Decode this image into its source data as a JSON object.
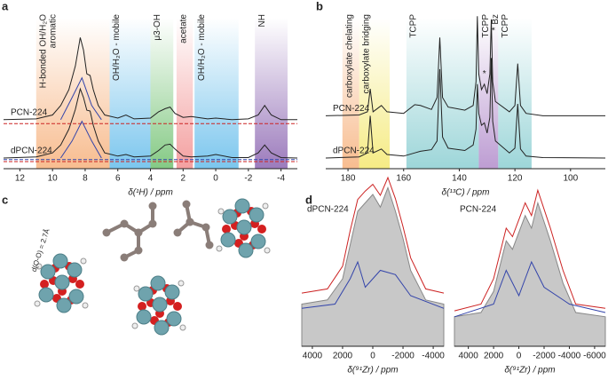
{
  "panel_labels": [
    "a",
    "b",
    "c",
    "d"
  ],
  "annotation_c": "d(O-O) = 2.7Å",
  "chart_data": [
    {
      "type": "line",
      "xlabel": "δ(¹H) / ppm",
      "xlim": [
        13,
        -5
      ],
      "xticks": [
        12,
        10,
        8,
        6,
        4,
        2,
        0,
        -2,
        -4
      ],
      "ylim": [
        0,
        20
      ],
      "regions": [
        {
          "label": [
            "H-bonded OH/H₂O",
            "aromatic"
          ],
          "from": 11,
          "to": 6.5,
          "color": "#f5a66a"
        },
        {
          "label": [
            "OH/H₂O - mobile"
          ],
          "from": 6.5,
          "to": 4,
          "color": "#4fb3e8"
        },
        {
          "label": [
            "μ3-OH"
          ],
          "from": 4,
          "to": 2.6,
          "color": "#5cb85c"
        },
        {
          "label": [
            "acetate"
          ],
          "from": 2.4,
          "to": 1.4,
          "color": "#f08080"
        },
        {
          "label": [
            "OH/H₂O - mobile"
          ],
          "from": 1.3,
          "to": -1.4,
          "color": "#4fb3e8"
        },
        {
          "label": [
            "NH"
          ],
          "from": -2.4,
          "to": -4.4,
          "color": "#7b4fa6"
        }
      ],
      "series": [
        {
          "name": "PCN-224",
          "color": "#222222",
          "x": [
            13,
            11,
            10,
            9.5,
            9,
            8.6,
            8.3,
            8.1,
            7.9,
            7.7,
            7.5,
            7.2,
            6.8,
            6,
            5.5,
            5,
            4,
            3.5,
            3.1,
            2.8,
            2.5,
            2,
            1.5,
            0.5,
            0,
            -1,
            -2,
            -2.6,
            -3,
            -3.4,
            -4,
            -5
          ],
          "values": [
            6.2,
            6.3,
            6.8,
            8,
            10,
            13,
            16.6,
            15,
            12,
            11.8,
            10,
            8,
            6.8,
            6.4,
            6.8,
            6.3,
            6.4,
            7.2,
            7.6,
            7.8,
            7,
            6.5,
            6.6,
            6.3,
            6.4,
            6.2,
            6.3,
            6.8,
            8,
            6.8,
            6.2,
            6.2
          ]
        },
        {
          "name": "dPCN-224",
          "color": "#222222",
          "x": [
            13,
            11,
            10,
            9.5,
            9,
            8.6,
            8.3,
            8.1,
            7.9,
            7.7,
            7.5,
            7.2,
            6.8,
            6,
            5.5,
            5,
            4,
            3.5,
            3.1,
            2.8,
            2.5,
            2,
            1.5,
            0.5,
            0,
            -1,
            -2,
            -2.6,
            -3,
            -3.4,
            -4,
            -5
          ],
          "values": [
            1.35,
            1.5,
            2,
            3,
            5,
            7.5,
            10.1,
            9,
            7.4,
            7.3,
            5.5,
            3.5,
            2,
            1.6,
            1.8,
            1.5,
            1.6,
            2.3,
            3,
            3.1,
            2.5,
            1.6,
            1.5,
            1.6,
            1.8,
            1.4,
            1.4,
            2,
            3,
            2,
            1.4,
            1.35
          ]
        },
        {
          "color": "#cc2222",
          "dash": true,
          "x": [
            13,
            -5
          ],
          "values": [
            5.7,
            5.7
          ]
        },
        {
          "color": "#cc2222",
          "dash": true,
          "x": [
            13,
            -5
          ],
          "values": [
            0.9,
            0.9
          ]
        },
        {
          "color": "#3344aa",
          "dash": true,
          "x": [
            13,
            -5
          ],
          "values": [
            1.15,
            1.15
          ]
        },
        {
          "color": "#3344aa",
          "x": [
            9.5,
            8.8,
            8.2,
            7.6,
            7
          ],
          "values": [
            6.2,
            9,
            11.5,
            8,
            6.2
          ]
        },
        {
          "color": "#3344aa",
          "x": [
            9.5,
            8.8,
            8.2,
            7.6,
            7
          ],
          "values": [
            1.35,
            3.5,
            6,
            3.5,
            1.35
          ]
        }
      ]
    },
    {
      "type": "line",
      "xlabel": "δ(¹³C) / ppm",
      "xlim": [
        188,
        87.5
      ],
      "xticks": [
        180,
        160,
        140,
        120,
        100
      ],
      "ylim": [
        0,
        20
      ],
      "regions": [
        {
          "label": [
            "carboxylate chelating"
          ],
          "from": 182,
          "to": 176,
          "color": "#f5a66a"
        },
        {
          "label": [
            "carboxylate bridging"
          ],
          "from": 176,
          "to": 165,
          "color": "#f2e55c"
        },
        {
          "label": [
            "TCPP"
          ],
          "from": 159,
          "to": 133,
          "color": "#7cc8cc"
        },
        {
          "label": [
            "TCPP",
            "* Bz"
          ],
          "from": 133,
          "to": 126,
          "color": "#a77cc4"
        },
        {
          "label": [
            "TCPP"
          ],
          "from": 126,
          "to": 114,
          "color": "#7cc8cc"
        }
      ],
      "annotations": [
        {
          "text": "*",
          "x": 131,
          "y": 12
        }
      ],
      "series": [
        {
          "name": "PCN-224",
          "color": "#222222",
          "x": [
            188,
            176,
            173,
            172,
            171,
            168,
            166,
            160,
            156,
            154,
            150,
            148,
            147,
            146,
            144,
            138,
            135,
            134,
            133.5,
            133,
            132,
            131,
            130,
            129,
            128.5,
            128,
            127,
            122,
            120,
            119,
            118,
            116,
            110,
            87.5
          ],
          "values": [
            6.7,
            6.8,
            7.2,
            10.1,
            7.2,
            8,
            7.2,
            7,
            8.1,
            8,
            7.5,
            9,
            16.6,
            9,
            7.8,
            7.4,
            8,
            11,
            19.3,
            12,
            10,
            10.7,
            9.5,
            12,
            18.9,
            11,
            8.5,
            7.2,
            8,
            13.3,
            8,
            7,
            6.7,
            6.7
          ]
        },
        {
          "name": "dPCN-224",
          "color": "#222222",
          "x": [
            188,
            176,
            173,
            172,
            171,
            168,
            166,
            160,
            156,
            154,
            150,
            148,
            147,
            146,
            144,
            138,
            135,
            134,
            133.5,
            133,
            132,
            131,
            130,
            129,
            128.5,
            128,
            127,
            122,
            120,
            119,
            118,
            116,
            110,
            87.5
          ],
          "values": [
            1.35,
            1.5,
            2,
            6.7,
            2,
            2.5,
            1.8,
            1.6,
            2,
            2.2,
            2.4,
            3.5,
            12.6,
            4,
            2.6,
            2.3,
            3,
            5,
            10.7,
            7,
            5.5,
            5.8,
            4.5,
            6.5,
            14,
            6,
            3.5,
            2,
            2.6,
            8.2,
            2.5,
            1.6,
            1.4,
            1.35
          ]
        }
      ]
    },
    {
      "type": "line",
      "title": "dPCN-224",
      "xlabel": "δ(⁹¹Zr) / ppm",
      "xlim": [
        4700,
        -4700
      ],
      "xticks": [
        4000,
        2000,
        0,
        -2000,
        -4000
      ],
      "ylim": [
        0,
        20
      ],
      "series": [
        {
          "color": "#888888",
          "fill": "#c8c8c8",
          "x": [
            4700,
            3000,
            2000,
            1500,
            1000,
            500,
            0,
            -500,
            -1000,
            -1500,
            -2000,
            -2500,
            -3500,
            -4700
          ],
          "values": [
            5,
            5.5,
            8,
            12,
            16,
            17,
            18,
            16.5,
            18.8,
            16,
            12.8,
            9,
            5.5,
            5
          ]
        },
        {
          "color": "#cc2222",
          "x": [
            4700,
            3000,
            2000,
            1500,
            1000,
            500,
            0,
            -500,
            -1000,
            -1500,
            -2000,
            -2500,
            -3500,
            -4700
          ],
          "values": [
            6.3,
            6.8,
            9.5,
            13.7,
            17.4,
            18.4,
            19.2,
            17.9,
            20,
            17.5,
            14.2,
            10.5,
            6.8,
            6.3
          ]
        },
        {
          "color": "#3344aa",
          "x": [
            4700,
            2500,
            1500,
            1000,
            500,
            -500,
            -1500,
            -2500,
            -4700
          ],
          "values": [
            4.5,
            5,
            8,
            10,
            7,
            9,
            8.5,
            6,
            4.5
          ]
        }
      ]
    },
    {
      "type": "line",
      "title": "PCN-224",
      "xlabel": "δ(⁹¹Zr) / ppm",
      "xlim": [
        5100,
        -6850
      ],
      "xticks": [
        4000,
        2000,
        0,
        -2000,
        -4000,
        -6000
      ],
      "ylim": [
        0,
        20
      ],
      "series": [
        {
          "color": "#888888",
          "fill": "#c8c8c8",
          "x": [
            5100,
            3000,
            2000,
            1000,
            500,
            -500,
            -1000,
            -1500,
            -2500,
            -3500,
            -4500,
            -6850
          ],
          "values": [
            3.5,
            4,
            6.5,
            12.5,
            11.5,
            15.5,
            14,
            17,
            12.5,
            7.5,
            4,
            3.5
          ]
        },
        {
          "color": "#cc2222",
          "x": [
            5100,
            3000,
            2000,
            1000,
            500,
            -500,
            -1000,
            -1500,
            -2500,
            -3500,
            -4500,
            -6850
          ],
          "values": [
            4.2,
            5,
            8,
            14,
            13,
            17,
            15.5,
            18.5,
            14,
            9,
            5,
            4.5
          ]
        },
        {
          "color": "#3344aa",
          "x": [
            5100,
            2000,
            1000,
            0,
            -1000,
            -2000,
            -4000,
            -6850
          ],
          "values": [
            3.5,
            5,
            9,
            6,
            10,
            7,
            5,
            4
          ]
        }
      ]
    }
  ]
}
